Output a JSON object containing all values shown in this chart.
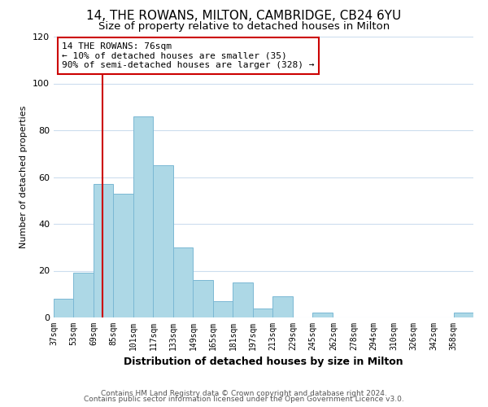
{
  "title": "14, THE ROWANS, MILTON, CAMBRIDGE, CB24 6YU",
  "subtitle": "Size of property relative to detached houses in Milton",
  "xlabel": "Distribution of detached houses by size in Milton",
  "ylabel": "Number of detached properties",
  "footer_line1": "Contains HM Land Registry data © Crown copyright and database right 2024.",
  "footer_line2": "Contains public sector information licensed under the Open Government Licence v3.0.",
  "bar_edges": [
    37,
    53,
    69,
    85,
    101,
    117,
    133,
    149,
    165,
    181,
    197,
    213,
    229,
    245,
    262,
    278,
    294,
    310,
    326,
    342,
    358,
    374
  ],
  "bar_heights": [
    8,
    19,
    57,
    53,
    86,
    65,
    30,
    16,
    7,
    15,
    4,
    9,
    0,
    2,
    0,
    0,
    0,
    0,
    0,
    0,
    2
  ],
  "bar_color": "#add8e6",
  "bar_edgecolor": "#7bb8d4",
  "vline_x": 76,
  "vline_color": "#cc0000",
  "annotation_line1": "14 THE ROWANS: 76sqm",
  "annotation_line2": "← 10% of detached houses are smaller (35)",
  "annotation_line3": "90% of semi-detached houses are larger (328) →",
  "ylim": [
    0,
    120
  ],
  "yticks": [
    0,
    20,
    40,
    60,
    80,
    100,
    120
  ],
  "tick_labels": [
    "37sqm",
    "53sqm",
    "69sqm",
    "85sqm",
    "101sqm",
    "117sqm",
    "133sqm",
    "149sqm",
    "165sqm",
    "181sqm",
    "197sqm",
    "213sqm",
    "229sqm",
    "245sqm",
    "262sqm",
    "278sqm",
    "294sqm",
    "310sqm",
    "326sqm",
    "342sqm",
    "358sqm"
  ],
  "background_color": "#ffffff",
  "grid_color": "#ccddee",
  "title_fontsize": 11,
  "subtitle_fontsize": 9.5,
  "xlabel_fontsize": 9,
  "ylabel_fontsize": 8,
  "annotation_fontsize": 8,
  "footer_fontsize": 6.5
}
